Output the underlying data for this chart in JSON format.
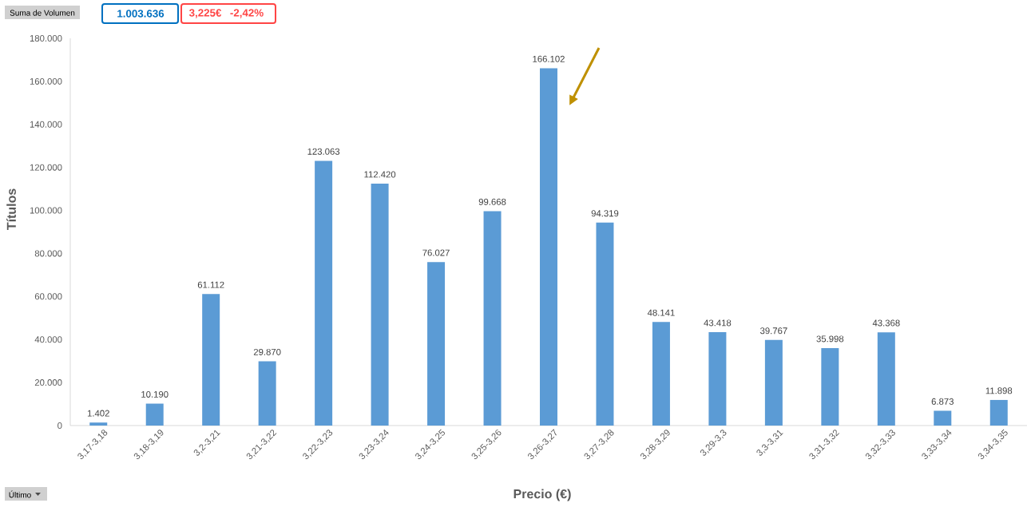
{
  "chart_data": {
    "type": "bar",
    "categories": [
      "3,17-3,18",
      "3,18-3,19",
      "3,2-3,21",
      "3,21-3,22",
      "3,22-3,23",
      "3,23-3,24",
      "3,24-3,25",
      "3,25-3,26",
      "3,26-3,27",
      "3,27-3,28",
      "3,28-3,29",
      "3,29-3,3",
      "3,3-3,31",
      "3,31-3,32",
      "3,32-3,33",
      "3,33-3,34",
      "3,34-3,35"
    ],
    "values": [
      1402,
      10190,
      61112,
      29870,
      123063,
      112420,
      76027,
      99668,
      166102,
      94319,
      48141,
      43418,
      39767,
      35998,
      43368,
      6873,
      11898
    ],
    "value_labels": [
      "1.402",
      "10.190",
      "61.112",
      "29.870",
      "123.063",
      "112.420",
      "76.027",
      "99.668",
      "166.102",
      "94.319",
      "48.141",
      "43.418",
      "39.767",
      "35.998",
      "43.368",
      "6.873",
      "11.898"
    ],
    "color": "#5b9bd5",
    "xlabel": "Precio (€)",
    "ylabel": "Títulos",
    "ylim": [
      0,
      180000
    ],
    "yticks": [
      0,
      {
        "value": 20000,
        "label": "20.000"
      },
      {
        "value": 40000,
        "label": "40.000"
      },
      {
        "value": 60000,
        "label": "60.000"
      },
      {
        "value": 80000,
        "label": "80.000"
      },
      {
        "value": 100000,
        "label": "100.000"
      },
      {
        "value": 120000,
        "label": "120.000"
      },
      {
        "value": 140000,
        "label": "140.000"
      },
      {
        "value": 160000,
        "label": "160.000"
      },
      {
        "value": 180000,
        "label": "180.000"
      }
    ],
    "annotations": [
      "Suma de Volumen",
      "1.003.636",
      "3,225€",
      "-2,42%",
      "Último"
    ]
  }
}
